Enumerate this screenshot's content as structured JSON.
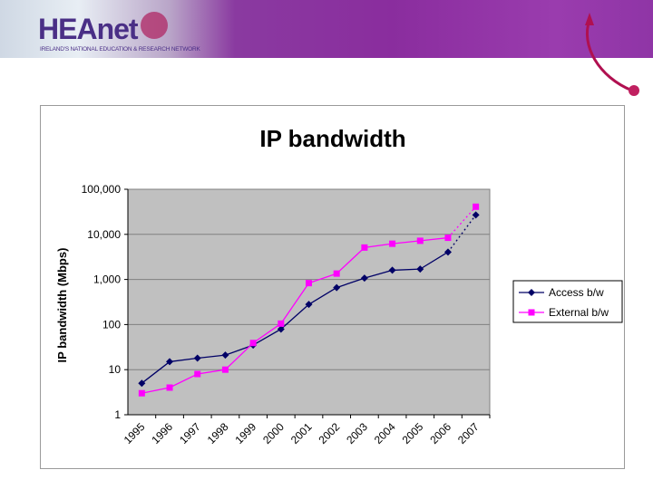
{
  "header": {
    "logo_text": "HEAnet",
    "logo_tagline": "IRELAND'S NATIONAL EDUCATION & RESEARCH NETWORK"
  },
  "chart_data": {
    "type": "line",
    "title": "IP bandwidth",
    "xlabel": "",
    "ylabel": "IP bandwidth (Mbps)",
    "y_scale": "log",
    "ylim": [
      1,
      100000
    ],
    "y_ticks": [
      "1",
      "10",
      "100",
      "1,000",
      "10,000",
      "100,000"
    ],
    "categories": [
      "1995",
      "1996",
      "1997",
      "1998",
      "1999",
      "2000",
      "2001",
      "2002",
      "2003",
      "2004",
      "2005",
      "2006",
      "2007"
    ],
    "grid": true,
    "legend_position": "right",
    "plot_background": "#c0c0c0",
    "series": [
      {
        "name": "Access b/w",
        "color": "#000066",
        "marker": "diamond",
        "values": [
          5,
          15,
          18,
          21,
          35,
          79,
          280,
          660,
          1070,
          1600,
          1700,
          4050,
          27000
        ],
        "dotted_last_segment": true
      },
      {
        "name": "External b/w",
        "color": "#ff00ff",
        "marker": "square",
        "values": [
          3,
          4,
          8,
          10,
          39,
          105,
          830,
          1350,
          5100,
          6200,
          7200,
          8400,
          41000
        ],
        "dotted_last_segment": true
      }
    ]
  }
}
